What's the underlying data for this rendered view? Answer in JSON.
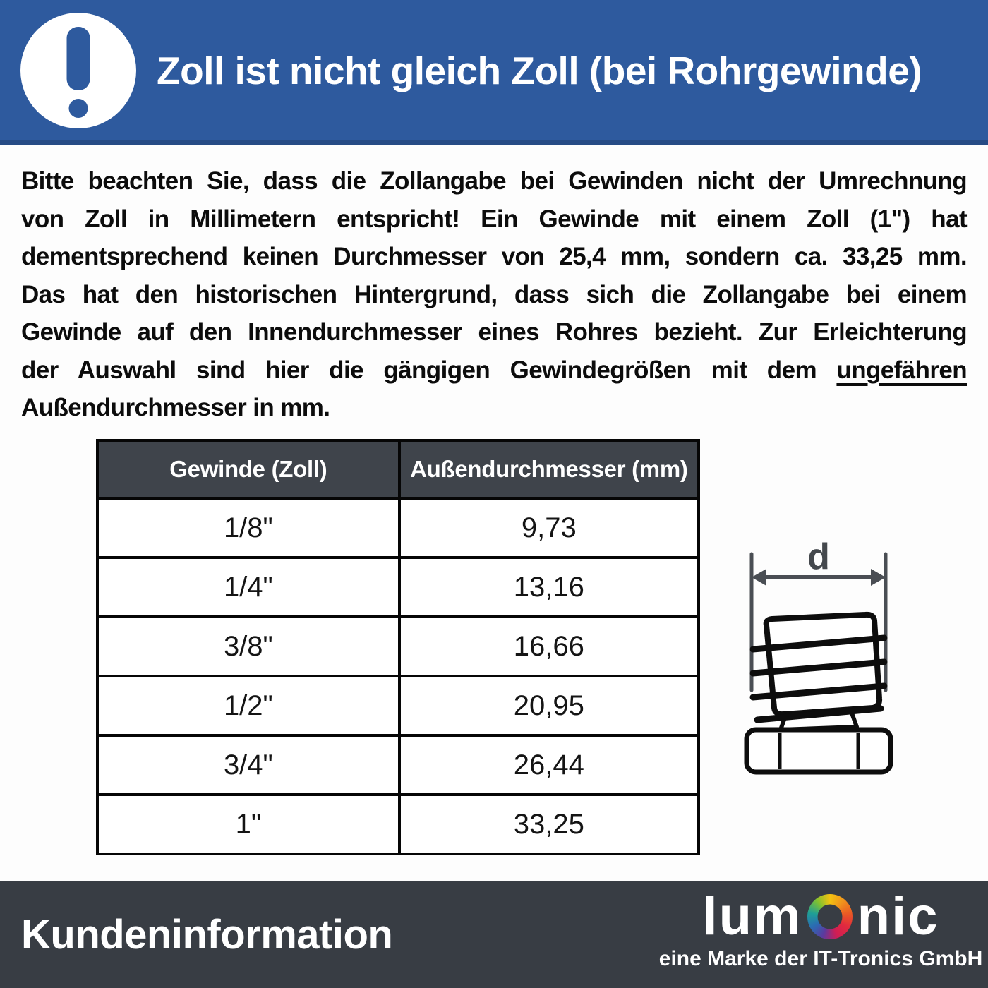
{
  "header": {
    "title": "Zoll ist nicht gleich Zoll (bei Rohrgewinde)",
    "icon": "exclamation-icon"
  },
  "body": {
    "lines": [
      {
        "segments": [
          {
            "text": "Bitte beachten Sie, dass die Zollangabe bei Gewinden nicht der Umrechnung"
          }
        ]
      },
      {
        "segments": [
          {
            "text": "von Zoll in Millimetern entspricht! Ein Gewinde mit einem Zoll (1\") hat"
          }
        ]
      },
      {
        "segments": [
          {
            "text": "dementsprechend keinen Durchmesser von 25,4 mm, sondern ca. 33,25 mm."
          }
        ]
      },
      {
        "segments": [
          {
            "text": "Das hat den historischen Hintergrund, dass sich die Zollangabe bei einem"
          }
        ]
      },
      {
        "segments": [
          {
            "text": "Gewinde auf den Innendurchmesser eines Rohres bezieht. Zur Erleichterung"
          }
        ]
      },
      {
        "segments": [
          {
            "text": "der Auswahl sind hier die gängigen Gewindegrößen mit dem "
          },
          {
            "text": "ungefähren",
            "underline": true
          }
        ]
      },
      {
        "segments": [
          {
            "text": "Außendurchmesser in mm."
          }
        ],
        "last": true
      }
    ]
  },
  "table": {
    "headers": [
      "Gewinde (Zoll)",
      "Außendurchmesser (mm)"
    ],
    "rows": [
      [
        "1/8\"",
        "9,73"
      ],
      [
        "1/4\"",
        "13,16"
      ],
      [
        "3/8\"",
        "16,66"
      ],
      [
        "1/2\"",
        "20,95"
      ],
      [
        "3/4\"",
        "26,44"
      ],
      [
        "1\"",
        "33,25"
      ]
    ]
  },
  "diagram": {
    "dimension_label": "d",
    "depicts": "threaded-pipe-fitting-outer-diameter"
  },
  "footer": {
    "label": "Kundeninformation",
    "logo": {
      "pre": "lum",
      "post": "nic",
      "tagline": "eine Marke der IT-Tronics GmbH"
    }
  },
  "colors": {
    "header_blue": "#2e5a9e",
    "header_blue_edge": "#264b85",
    "table_header_dark": "#3f444b",
    "footer_dark": "#383d44",
    "text_black": "#0c0c0c",
    "white": "#ffffff",
    "ring_gradient": [
      "#f4c211",
      "#f0931c",
      "#ea5a24",
      "#e22a3e",
      "#cf1d55",
      "#2a6cb3",
      "#1e9e97",
      "#7ec131"
    ]
  }
}
